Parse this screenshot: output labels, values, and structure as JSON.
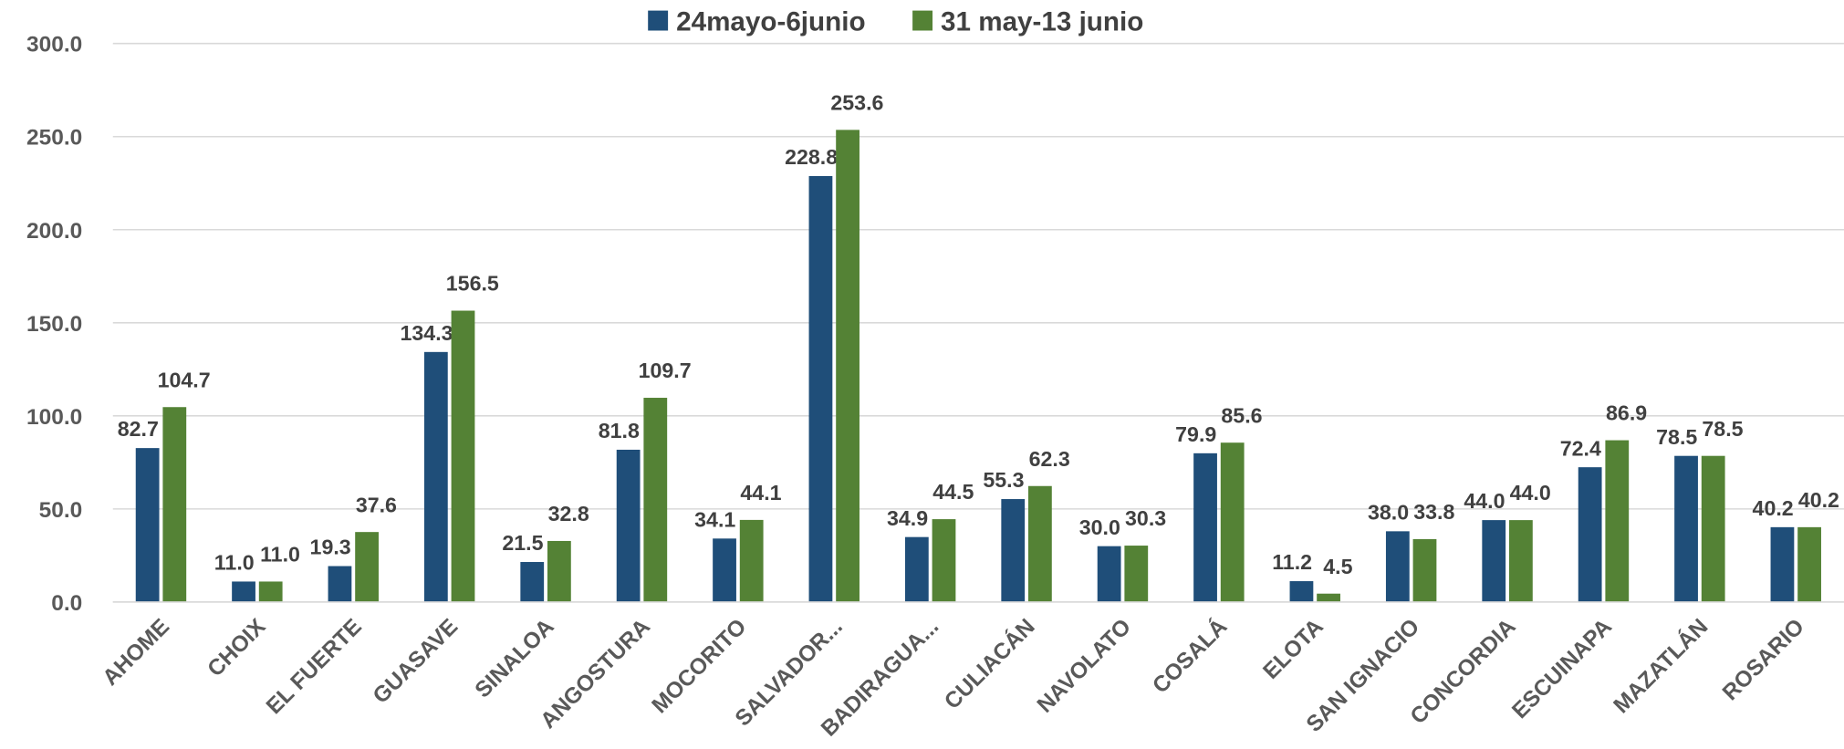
{
  "chart_data": {
    "type": "bar",
    "categories": [
      "AHOME",
      "CHOIX",
      "EL FUERTE",
      "GUASAVE",
      "SINALOA",
      "ANGOSTURA",
      "MOCORITO",
      "SALVADOR...",
      "BADIRAGUA...",
      "CULIACÁN",
      "NAVOLATO",
      "COSALÁ",
      "ELOTA",
      "SAN IGNACIO",
      "CONCORDIA",
      "ESCUINAPA",
      "MAZATLÁN",
      "ROSARIO"
    ],
    "series": [
      {
        "name": "24mayo-6junio",
        "color": "#1f4e79",
        "values": [
          82.7,
          11.0,
          19.3,
          134.3,
          21.5,
          81.8,
          34.1,
          228.8,
          34.9,
          55.3,
          30.0,
          79.9,
          11.2,
          38.0,
          44.0,
          72.4,
          78.5,
          40.2
        ],
        "value_labels": [
          "82.7",
          "11.0",
          "19.3",
          "134.3",
          "21.5",
          "81.8",
          "34.1",
          "228.8",
          "34.9",
          "55.3",
          "30.0",
          "79.9",
          "11.2",
          "38.0",
          "44.0",
          "72.4",
          "78.5",
          "40.2"
        ]
      },
      {
        "name": "31 may-13 junio",
        "color": "#548235",
        "values": [
          104.7,
          11.0,
          37.6,
          156.5,
          32.8,
          109.7,
          44.1,
          253.6,
          44.5,
          62.3,
          30.3,
          85.6,
          4.5,
          33.8,
          44.0,
          86.9,
          78.5,
          40.2
        ],
        "value_labels": [
          "104.7",
          "11.0",
          "37.6",
          "156.5",
          "32.8",
          "109.7",
          "44.1",
          "253.6",
          "44.5",
          "62.3",
          "30.3",
          "85.6",
          "4.5",
          "33.8",
          "44.0",
          "86.9",
          "78.5",
          "40.2"
        ]
      }
    ],
    "ylim": [
      0,
      300
    ],
    "yticks": [
      {
        "value": 0,
        "label": "0.0"
      },
      {
        "value": 50,
        "label": "50.0"
      },
      {
        "value": 100,
        "label": "100.0"
      },
      {
        "value": 150,
        "label": "150.0"
      },
      {
        "value": 200,
        "label": "200.0"
      },
      {
        "value": 250,
        "label": "250.0"
      },
      {
        "value": 300,
        "label": "300.0"
      }
    ],
    "grid": true,
    "legend": "top"
  }
}
